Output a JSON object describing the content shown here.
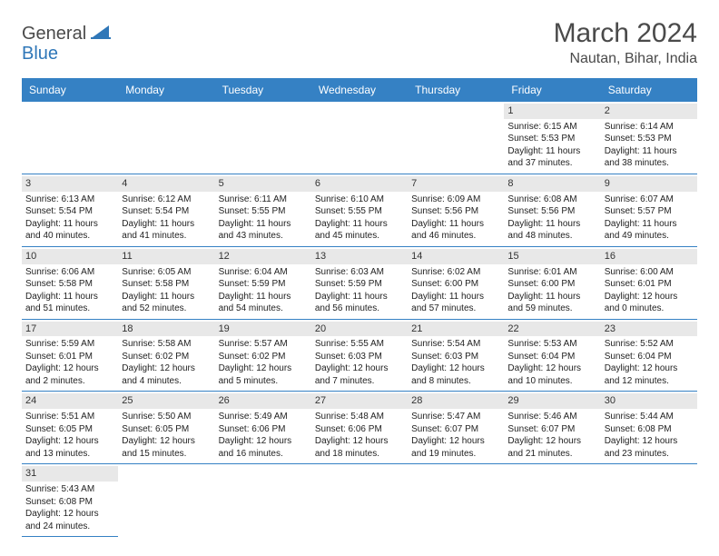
{
  "logo": {
    "general": "General",
    "blue": "Blue"
  },
  "title": "March 2024",
  "location": "Nautan, Bihar, India",
  "header_color": "#3581c4",
  "border_color": "#3581c4",
  "daynum_bg": "#e8e8e8",
  "text_color": "#222222",
  "dayHeaders": [
    "Sunday",
    "Monday",
    "Tuesday",
    "Wednesday",
    "Thursday",
    "Friday",
    "Saturday"
  ],
  "startOffset": 5,
  "days": [
    {
      "n": 1,
      "sr": "6:15 AM",
      "ss": "5:53 PM",
      "dl": "11 hours and 37 minutes."
    },
    {
      "n": 2,
      "sr": "6:14 AM",
      "ss": "5:53 PM",
      "dl": "11 hours and 38 minutes."
    },
    {
      "n": 3,
      "sr": "6:13 AM",
      "ss": "5:54 PM",
      "dl": "11 hours and 40 minutes."
    },
    {
      "n": 4,
      "sr": "6:12 AM",
      "ss": "5:54 PM",
      "dl": "11 hours and 41 minutes."
    },
    {
      "n": 5,
      "sr": "6:11 AM",
      "ss": "5:55 PM",
      "dl": "11 hours and 43 minutes."
    },
    {
      "n": 6,
      "sr": "6:10 AM",
      "ss": "5:55 PM",
      "dl": "11 hours and 45 minutes."
    },
    {
      "n": 7,
      "sr": "6:09 AM",
      "ss": "5:56 PM",
      "dl": "11 hours and 46 minutes."
    },
    {
      "n": 8,
      "sr": "6:08 AM",
      "ss": "5:56 PM",
      "dl": "11 hours and 48 minutes."
    },
    {
      "n": 9,
      "sr": "6:07 AM",
      "ss": "5:57 PM",
      "dl": "11 hours and 49 minutes."
    },
    {
      "n": 10,
      "sr": "6:06 AM",
      "ss": "5:58 PM",
      "dl": "11 hours and 51 minutes."
    },
    {
      "n": 11,
      "sr": "6:05 AM",
      "ss": "5:58 PM",
      "dl": "11 hours and 52 minutes."
    },
    {
      "n": 12,
      "sr": "6:04 AM",
      "ss": "5:59 PM",
      "dl": "11 hours and 54 minutes."
    },
    {
      "n": 13,
      "sr": "6:03 AM",
      "ss": "5:59 PM",
      "dl": "11 hours and 56 minutes."
    },
    {
      "n": 14,
      "sr": "6:02 AM",
      "ss": "6:00 PM",
      "dl": "11 hours and 57 minutes."
    },
    {
      "n": 15,
      "sr": "6:01 AM",
      "ss": "6:00 PM",
      "dl": "11 hours and 59 minutes."
    },
    {
      "n": 16,
      "sr": "6:00 AM",
      "ss": "6:01 PM",
      "dl": "12 hours and 0 minutes."
    },
    {
      "n": 17,
      "sr": "5:59 AM",
      "ss": "6:01 PM",
      "dl": "12 hours and 2 minutes."
    },
    {
      "n": 18,
      "sr": "5:58 AM",
      "ss": "6:02 PM",
      "dl": "12 hours and 4 minutes."
    },
    {
      "n": 19,
      "sr": "5:57 AM",
      "ss": "6:02 PM",
      "dl": "12 hours and 5 minutes."
    },
    {
      "n": 20,
      "sr": "5:55 AM",
      "ss": "6:03 PM",
      "dl": "12 hours and 7 minutes."
    },
    {
      "n": 21,
      "sr": "5:54 AM",
      "ss": "6:03 PM",
      "dl": "12 hours and 8 minutes."
    },
    {
      "n": 22,
      "sr": "5:53 AM",
      "ss": "6:04 PM",
      "dl": "12 hours and 10 minutes."
    },
    {
      "n": 23,
      "sr": "5:52 AM",
      "ss": "6:04 PM",
      "dl": "12 hours and 12 minutes."
    },
    {
      "n": 24,
      "sr": "5:51 AM",
      "ss": "6:05 PM",
      "dl": "12 hours and 13 minutes."
    },
    {
      "n": 25,
      "sr": "5:50 AM",
      "ss": "6:05 PM",
      "dl": "12 hours and 15 minutes."
    },
    {
      "n": 26,
      "sr": "5:49 AM",
      "ss": "6:06 PM",
      "dl": "12 hours and 16 minutes."
    },
    {
      "n": 27,
      "sr": "5:48 AM",
      "ss": "6:06 PM",
      "dl": "12 hours and 18 minutes."
    },
    {
      "n": 28,
      "sr": "5:47 AM",
      "ss": "6:07 PM",
      "dl": "12 hours and 19 minutes."
    },
    {
      "n": 29,
      "sr": "5:46 AM",
      "ss": "6:07 PM",
      "dl": "12 hours and 21 minutes."
    },
    {
      "n": 30,
      "sr": "5:44 AM",
      "ss": "6:08 PM",
      "dl": "12 hours and 23 minutes."
    },
    {
      "n": 31,
      "sr": "5:43 AM",
      "ss": "6:08 PM",
      "dl": "12 hours and 24 minutes."
    }
  ],
  "labels": {
    "sunrise": "Sunrise: ",
    "sunset": "Sunset: ",
    "daylight": "Daylight: "
  }
}
